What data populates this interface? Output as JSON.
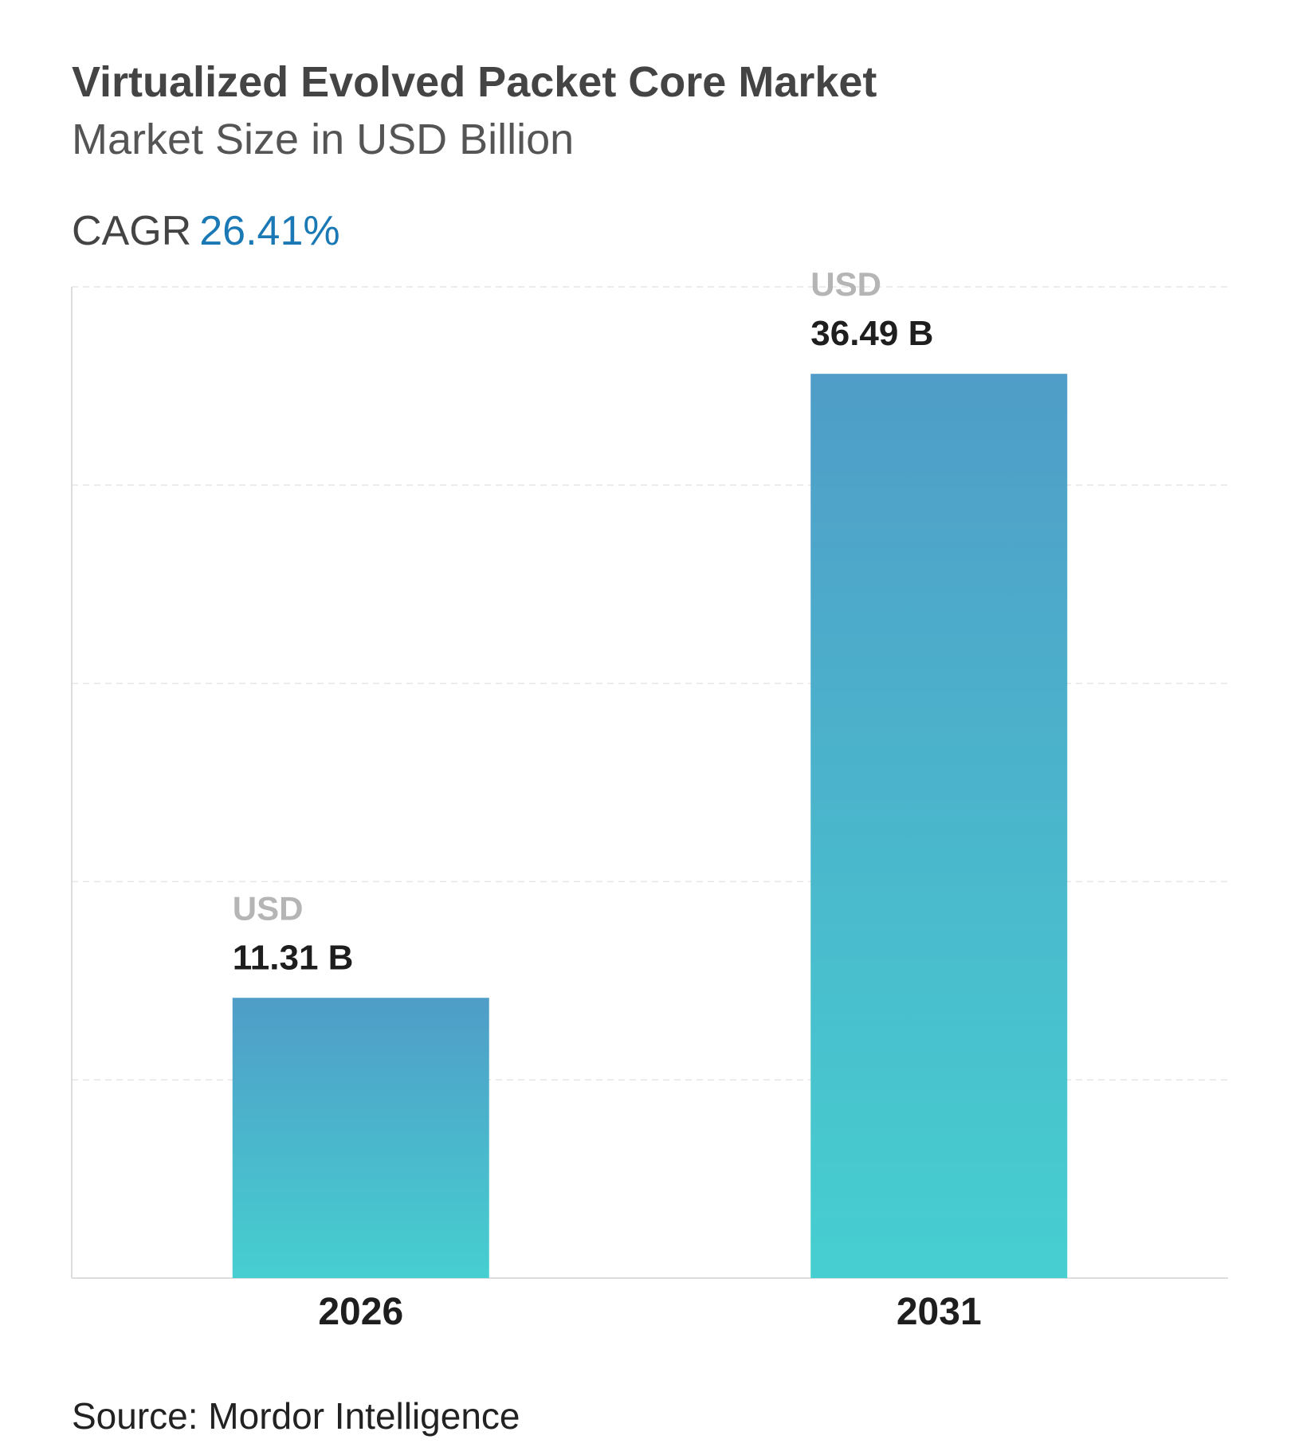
{
  "header": {
    "title": "Virtualized Evolved Packet Core Market",
    "subtitle": "Market Size in USD Billion",
    "cagr_label": "CAGR",
    "cagr_value": "26.41%"
  },
  "footer": {
    "source": "Source: Mordor Intelligence"
  },
  "colors": {
    "accent": "#1a78b4",
    "bar_top": "#4f9dc8",
    "bar_bottom": "#46cfd0"
  },
  "chart_data": {
    "type": "bar",
    "categories": [
      "2026",
      "2031"
    ],
    "values": [
      11.31,
      36.49
    ],
    "data_labels": [
      {
        "prefix": "USD",
        "value": "11.31 B"
      },
      {
        "prefix": "USD",
        "value": "36.49 B"
      }
    ],
    "title": "Virtualized Evolved Packet Core Market",
    "subtitle": "Market Size in USD Billion",
    "xlabel": "",
    "ylabel": "",
    "ylim": [
      0,
      40
    ],
    "grid": true,
    "y_tick_labels_shown": false
  }
}
